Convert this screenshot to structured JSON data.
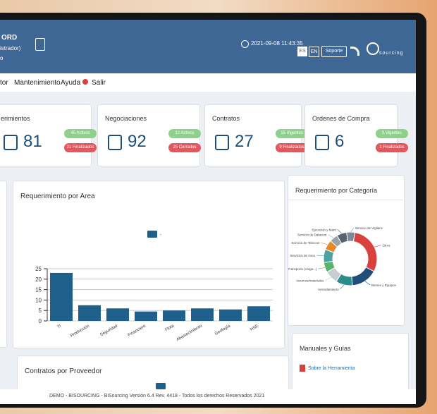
{
  "header": {
    "user_name": "ORD",
    "user_role": "istrador)",
    "user_extra": "o",
    "datetime": "2021-09-08 11:43:35",
    "languages": [
      "ES",
      "EN"
    ],
    "support": "Soporte",
    "logo": "sourcing"
  },
  "menu": [
    "tor",
    "Mantenimiento",
    "Ayuda",
    "Salir"
  ],
  "cards": [
    {
      "title": "erimientos",
      "count": 81,
      "badges": [
        "45 Activos",
        "21 Finalizados"
      ]
    },
    {
      "title": "Negociaciones",
      "count": 92,
      "badges": [
        "12 Activos",
        "25 Cerrados"
      ]
    },
    {
      "title": "Contratos",
      "count": 27,
      "badges": [
        "15 Vigentes",
        "9 Finalizados"
      ]
    },
    {
      "title": "Ordenes de Compra",
      "count": 6,
      "badges": [
        "5 Vigentes",
        "1 Finalizados"
      ]
    }
  ],
  "area_chart": {
    "type": "bar",
    "title": "Requerimiento por Area",
    "categories": [
      "TI",
      "Producción",
      "Seguridad",
      "Financiero",
      "Flota",
      "Abastecimiento",
      "Geología",
      "HSE"
    ],
    "series": [
      {
        "name": "-",
        "color": "#1f5f8b",
        "values": [
          23,
          7.5,
          6,
          4.5,
          5,
          6,
          5.5,
          7
        ]
      }
    ],
    "ylim": [
      0,
      25
    ],
    "yticks": [
      0,
      5,
      10,
      15,
      20,
      25
    ],
    "grid": true
  },
  "category_chart": {
    "type": "pie",
    "title": "Requerimiento por Categoría",
    "categories": [
      "Otros",
      "Bienes y Equipos",
      "Arrendamiento",
      "Insumos/materiales",
      "Transporte (carga...)",
      "Servicios de Aseo",
      "Servicio de Telecom",
      "Servicio de Datacent",
      "Ejecución y Mant",
      "Servicio de Vigilanc"
    ],
    "values": [
      30,
      16,
      10,
      8,
      6,
      8,
      6,
      5,
      6,
      5
    ],
    "colors": [
      "#d9413f",
      "#1f4e79",
      "#2a8c8c",
      "#c8cdd2",
      "#59b36a",
      "#4aa3a3",
      "#e8872a",
      "#9aa3ab",
      "#5a6470",
      "#7a8a9a"
    ]
  },
  "manuals": {
    "title": "Manuales y Guías",
    "links": [
      "Sobre la Herramienta"
    ]
  },
  "provider_chart": {
    "title": "Contratos por Proveedor"
  },
  "footer": "DEMO - BISOURCING - BiSourcing Versión 6.4 Rev. 4418 - Todos los derechos Reservados 2021"
}
